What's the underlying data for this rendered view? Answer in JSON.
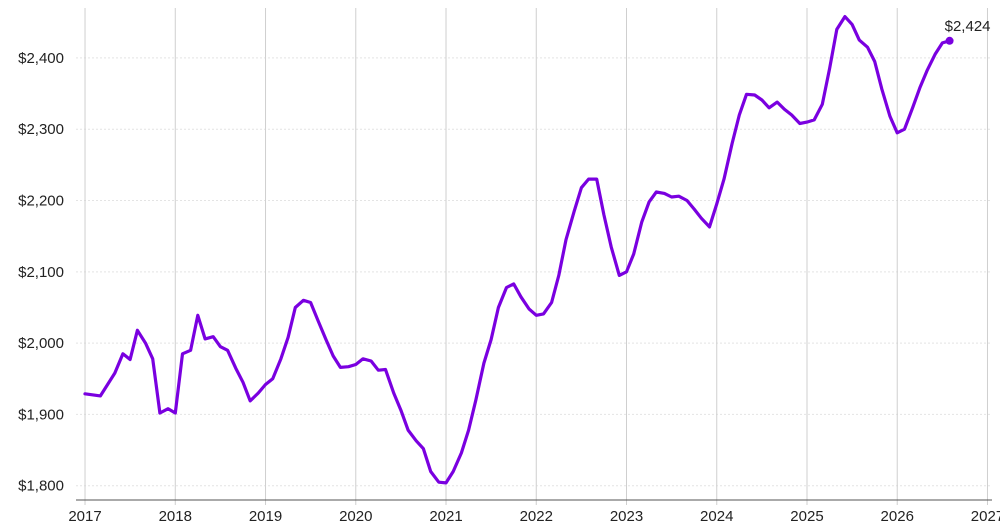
{
  "chart_data": {
    "type": "line",
    "title": "",
    "xlabel": "",
    "ylabel": "",
    "xlim": [
      2016.9,
      2027.05
    ],
    "ylim": [
      1780,
      2470
    ],
    "x_ticks": [
      2017,
      2018,
      2019,
      2020,
      2021,
      2022,
      2023,
      2024,
      2025,
      2026,
      2027
    ],
    "x_tick_labels": [
      "2017",
      "2018",
      "2019",
      "2020",
      "2021",
      "2022",
      "2023",
      "2024",
      "2025",
      "2026",
      "2027"
    ],
    "y_ticks": [
      1800,
      1900,
      2000,
      2100,
      2200,
      2300,
      2400
    ],
    "y_tick_labels": [
      "$1,800",
      "$1,900",
      "$2,000",
      "$2,100",
      "$2,200",
      "$2,300",
      "$2,400"
    ],
    "grid": true,
    "line_color": "#7a00e0",
    "end_label": "$2,424",
    "series": [
      {
        "x": [
          2017.0,
          2017.17,
          2017.25,
          2017.33,
          2017.42,
          2017.5,
          2017.58,
          2017.67,
          2017.75,
          2017.83,
          2017.92,
          2018.0,
          2018.08,
          2018.17,
          2018.25,
          2018.33,
          2018.42,
          2018.5,
          2018.58,
          2018.67,
          2018.75,
          2018.83,
          2018.92,
          2019.0,
          2019.08,
          2019.17,
          2019.25,
          2019.33,
          2019.42,
          2019.5,
          2019.58,
          2019.67,
          2019.75,
          2019.83,
          2019.92,
          2020.0,
          2020.08,
          2020.17,
          2020.25,
          2020.33,
          2020.42,
          2020.5,
          2020.58,
          2020.67,
          2020.75,
          2020.83,
          2020.92,
          2021.0,
          2021.08,
          2021.17,
          2021.25,
          2021.33,
          2021.42,
          2021.5,
          2021.58,
          2021.67,
          2021.75,
          2021.83,
          2021.92,
          2022.0,
          2022.08,
          2022.17,
          2022.25,
          2022.33,
          2022.42,
          2022.5,
          2022.58,
          2022.67,
          2022.75,
          2022.83,
          2022.92,
          2023.0,
          2023.08,
          2023.17,
          2023.25,
          2023.33,
          2023.42,
          2023.5,
          2023.58,
          2023.67,
          2023.75,
          2023.83,
          2023.92,
          2024.0,
          2024.08,
          2024.17,
          2024.25,
          2024.33,
          2024.42,
          2024.5,
          2024.58,
          2024.67,
          2024.75,
          2024.83,
          2024.92,
          2025.0,
          2025.08,
          2025.17,
          2025.25,
          2025.33,
          2025.42,
          2025.5,
          2025.58,
          2025.67,
          2025.75,
          2025.83,
          2025.92,
          2026.0,
          2026.08,
          2026.17,
          2026.25,
          2026.33,
          2026.42,
          2026.5,
          2026.58
        ],
        "y": [
          1929,
          1926,
          1942,
          1958,
          1985,
          1977,
          2018,
          2000,
          1978,
          1902,
          1908,
          1902,
          1985,
          1990,
          2039,
          2006,
          2009,
          1995,
          1990,
          1965,
          1945,
          1919,
          1930,
          1942,
          1950,
          1978,
          2008,
          2050,
          2060,
          2057,
          2032,
          2005,
          1982,
          1966,
          1967,
          1970,
          1978,
          1975,
          1962,
          1963,
          1930,
          1906,
          1878,
          1863,
          1852,
          1820,
          1805,
          1804,
          1820,
          1846,
          1878,
          1920,
          1972,
          2005,
          2050,
          2078,
          2083,
          2065,
          2048,
          2039,
          2041,
          2057,
          2095,
          2145,
          2185,
          2218,
          2230,
          2230,
          2180,
          2135,
          2095,
          2100,
          2125,
          2170,
          2198,
          2212,
          2210,
          2205,
          2206,
          2200,
          2188,
          2175,
          2163,
          2195,
          2230,
          2280,
          2320,
          2349,
          2348,
          2341,
          2330,
          2338,
          2328,
          2320,
          2308,
          2310,
          2313,
          2335,
          2385,
          2440,
          2458,
          2447,
          2425,
          2415,
          2395,
          2356,
          2318,
          2295,
          2300,
          2330,
          2358,
          2382,
          2405,
          2421,
          2424
        ]
      }
    ]
  }
}
